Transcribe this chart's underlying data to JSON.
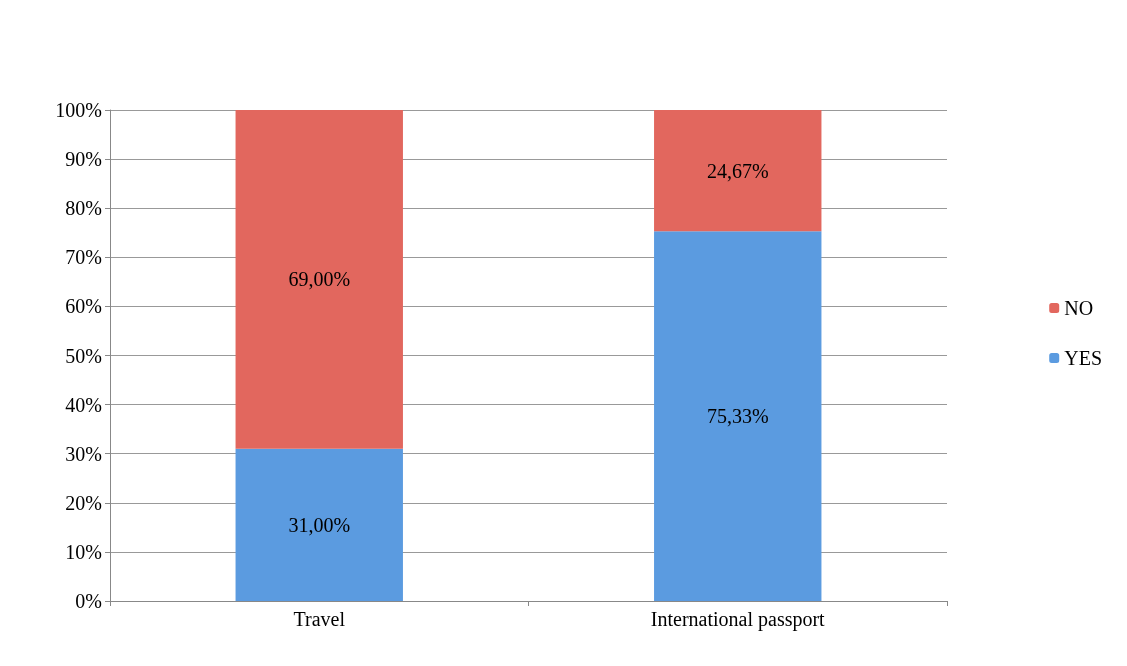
{
  "chart_data": {
    "type": "bar",
    "stacked": true,
    "categories": [
      "Travel",
      "International passport"
    ],
    "series": [
      {
        "name": "YES",
        "color": "#5b9be0",
        "values": [
          31.0,
          75.33
        ],
        "value_labels": [
          "31,00%",
          "75,33%"
        ]
      },
      {
        "name": "NO",
        "color": "#e2675e",
        "values": [
          69.0,
          24.67
        ],
        "value_labels": [
          "69,00%",
          "24,67%"
        ]
      }
    ],
    "ylim": [
      0,
      100
    ],
    "yticks": [
      {
        "value": 0,
        "label": "0%"
      },
      {
        "value": 10,
        "label": "10%"
      },
      {
        "value": 20,
        "label": "20%"
      },
      {
        "value": 30,
        "label": "30%"
      },
      {
        "value": 40,
        "label": "40%"
      },
      {
        "value": 50,
        "label": "50%"
      },
      {
        "value": 60,
        "label": "60%"
      },
      {
        "value": 70,
        "label": "70%"
      },
      {
        "value": 80,
        "label": "80%"
      },
      {
        "value": 90,
        "label": "90%"
      },
      {
        "value": 100,
        "label": "100%"
      }
    ],
    "grid": "y",
    "legend": "right"
  }
}
